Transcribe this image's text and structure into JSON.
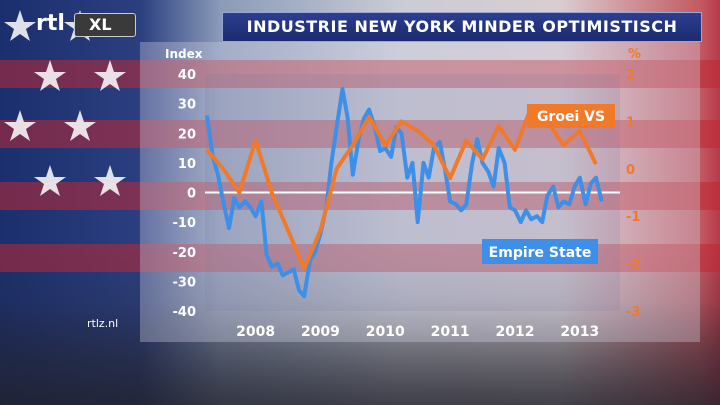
{
  "header": {
    "title": "INDUSTRIE NEW YORK MINDER OPTIMISTISCH"
  },
  "logo": {
    "text": "rtl",
    "box": "XL"
  },
  "site": "rtlz.nl",
  "chart_data": {
    "type": "line",
    "title": "INDUSTRIE NEW YORK MINDER OPTIMISTISCH",
    "y_left": {
      "label": "Index",
      "range": [
        -40,
        40
      ],
      "ticks": [
        40,
        30,
        20,
        10,
        0,
        -10,
        -20,
        -30,
        -40
      ]
    },
    "y_right": {
      "label": "%",
      "range": [
        -3,
        2
      ],
      "ticks": [
        2,
        1,
        0,
        -1,
        -2,
        -3
      ]
    },
    "x": {
      "range": [
        2007.3,
        2013.7
      ],
      "ticks": [
        "2008",
        "2009",
        "2010",
        "2011",
        "2012",
        "2013"
      ]
    },
    "zero_line": true,
    "colors": {
      "empire": "#3d8fe8",
      "groei": "#f07a2a",
      "left_ticks": "#ffffff",
      "right_ticks": "#f07a2a"
    },
    "series": [
      {
        "name": "Empire State",
        "axis": "left",
        "x": [
          2007.33,
          2007.42,
          2007.5,
          2007.58,
          2007.67,
          2007.75,
          2007.83,
          2007.92,
          2008.0,
          2008.08,
          2008.17,
          2008.25,
          2008.33,
          2008.42,
          2008.5,
          2008.58,
          2008.67,
          2008.75,
          2008.83,
          2008.92,
          2009.0,
          2009.08,
          2009.17,
          2009.25,
          2009.33,
          2009.42,
          2009.5,
          2009.58,
          2009.67,
          2009.75,
          2009.83,
          2009.92,
          2010.0,
          2010.08,
          2010.17,
          2010.25,
          2010.33,
          2010.42,
          2010.5,
          2010.58,
          2010.67,
          2010.75,
          2010.83,
          2010.92,
          2011.0,
          2011.08,
          2011.17,
          2011.25,
          2011.33,
          2011.42,
          2011.5,
          2011.58,
          2011.67,
          2011.75,
          2011.83,
          2011.92,
          2012.0,
          2012.08,
          2012.17,
          2012.25,
          2012.33,
          2012.42,
          2012.5,
          2012.58,
          2012.67,
          2012.75,
          2012.83,
          2012.92,
          2013.0,
          2013.08,
          2013.17,
          2013.25,
          2013.33,
          2013.42
        ],
        "values": [
          26,
          12,
          6,
          -3,
          -12,
          -2,
          -5,
          -3,
          -5,
          -8,
          -3,
          -21,
          -25,
          -24,
          -28,
          -27,
          -26,
          -33,
          -35,
          -23,
          -20,
          -14,
          -5,
          10,
          22,
          35,
          25,
          6,
          18,
          25,
          28,
          22,
          14,
          15,
          12,
          22,
          20,
          5,
          10,
          -10,
          10,
          5,
          15,
          17,
          8,
          -3,
          -4,
          -6,
          -4,
          10,
          18,
          10,
          7,
          2,
          15,
          10,
          -5,
          -6,
          -10,
          -6,
          -9,
          -8,
          -10,
          -1,
          2,
          -5,
          -3,
          -4,
          2,
          5,
          -4,
          3,
          5,
          -3
        ]
      },
      {
        "name": "Groei VS",
        "axis": "right",
        "x": [
          2007.33,
          2007.58,
          2007.83,
          2008.08,
          2008.33,
          2008.58,
          2008.83,
          2009.08,
          2009.33,
          2009.58,
          2009.83,
          2010.08,
          2010.33,
          2010.58,
          2010.83,
          2011.08,
          2011.33,
          2011.58,
          2011.83,
          2012.08,
          2012.33,
          2012.58,
          2012.83,
          2013.08,
          2013.33
        ],
        "values": [
          0.4,
          0.0,
          -0.5,
          0.6,
          -0.5,
          -1.3,
          -2.1,
          -1.3,
          0.0,
          0.5,
          1.1,
          0.5,
          1.0,
          0.8,
          0.5,
          -0.2,
          0.6,
          0.2,
          0.9,
          0.4,
          1.3,
          1.0,
          0.5,
          0.8,
          0.1
        ]
      }
    ],
    "annotations": [
      {
        "text": "Groei VS",
        "series": "Groei VS"
      },
      {
        "text": "Empire State",
        "series": "Empire State"
      }
    ]
  }
}
